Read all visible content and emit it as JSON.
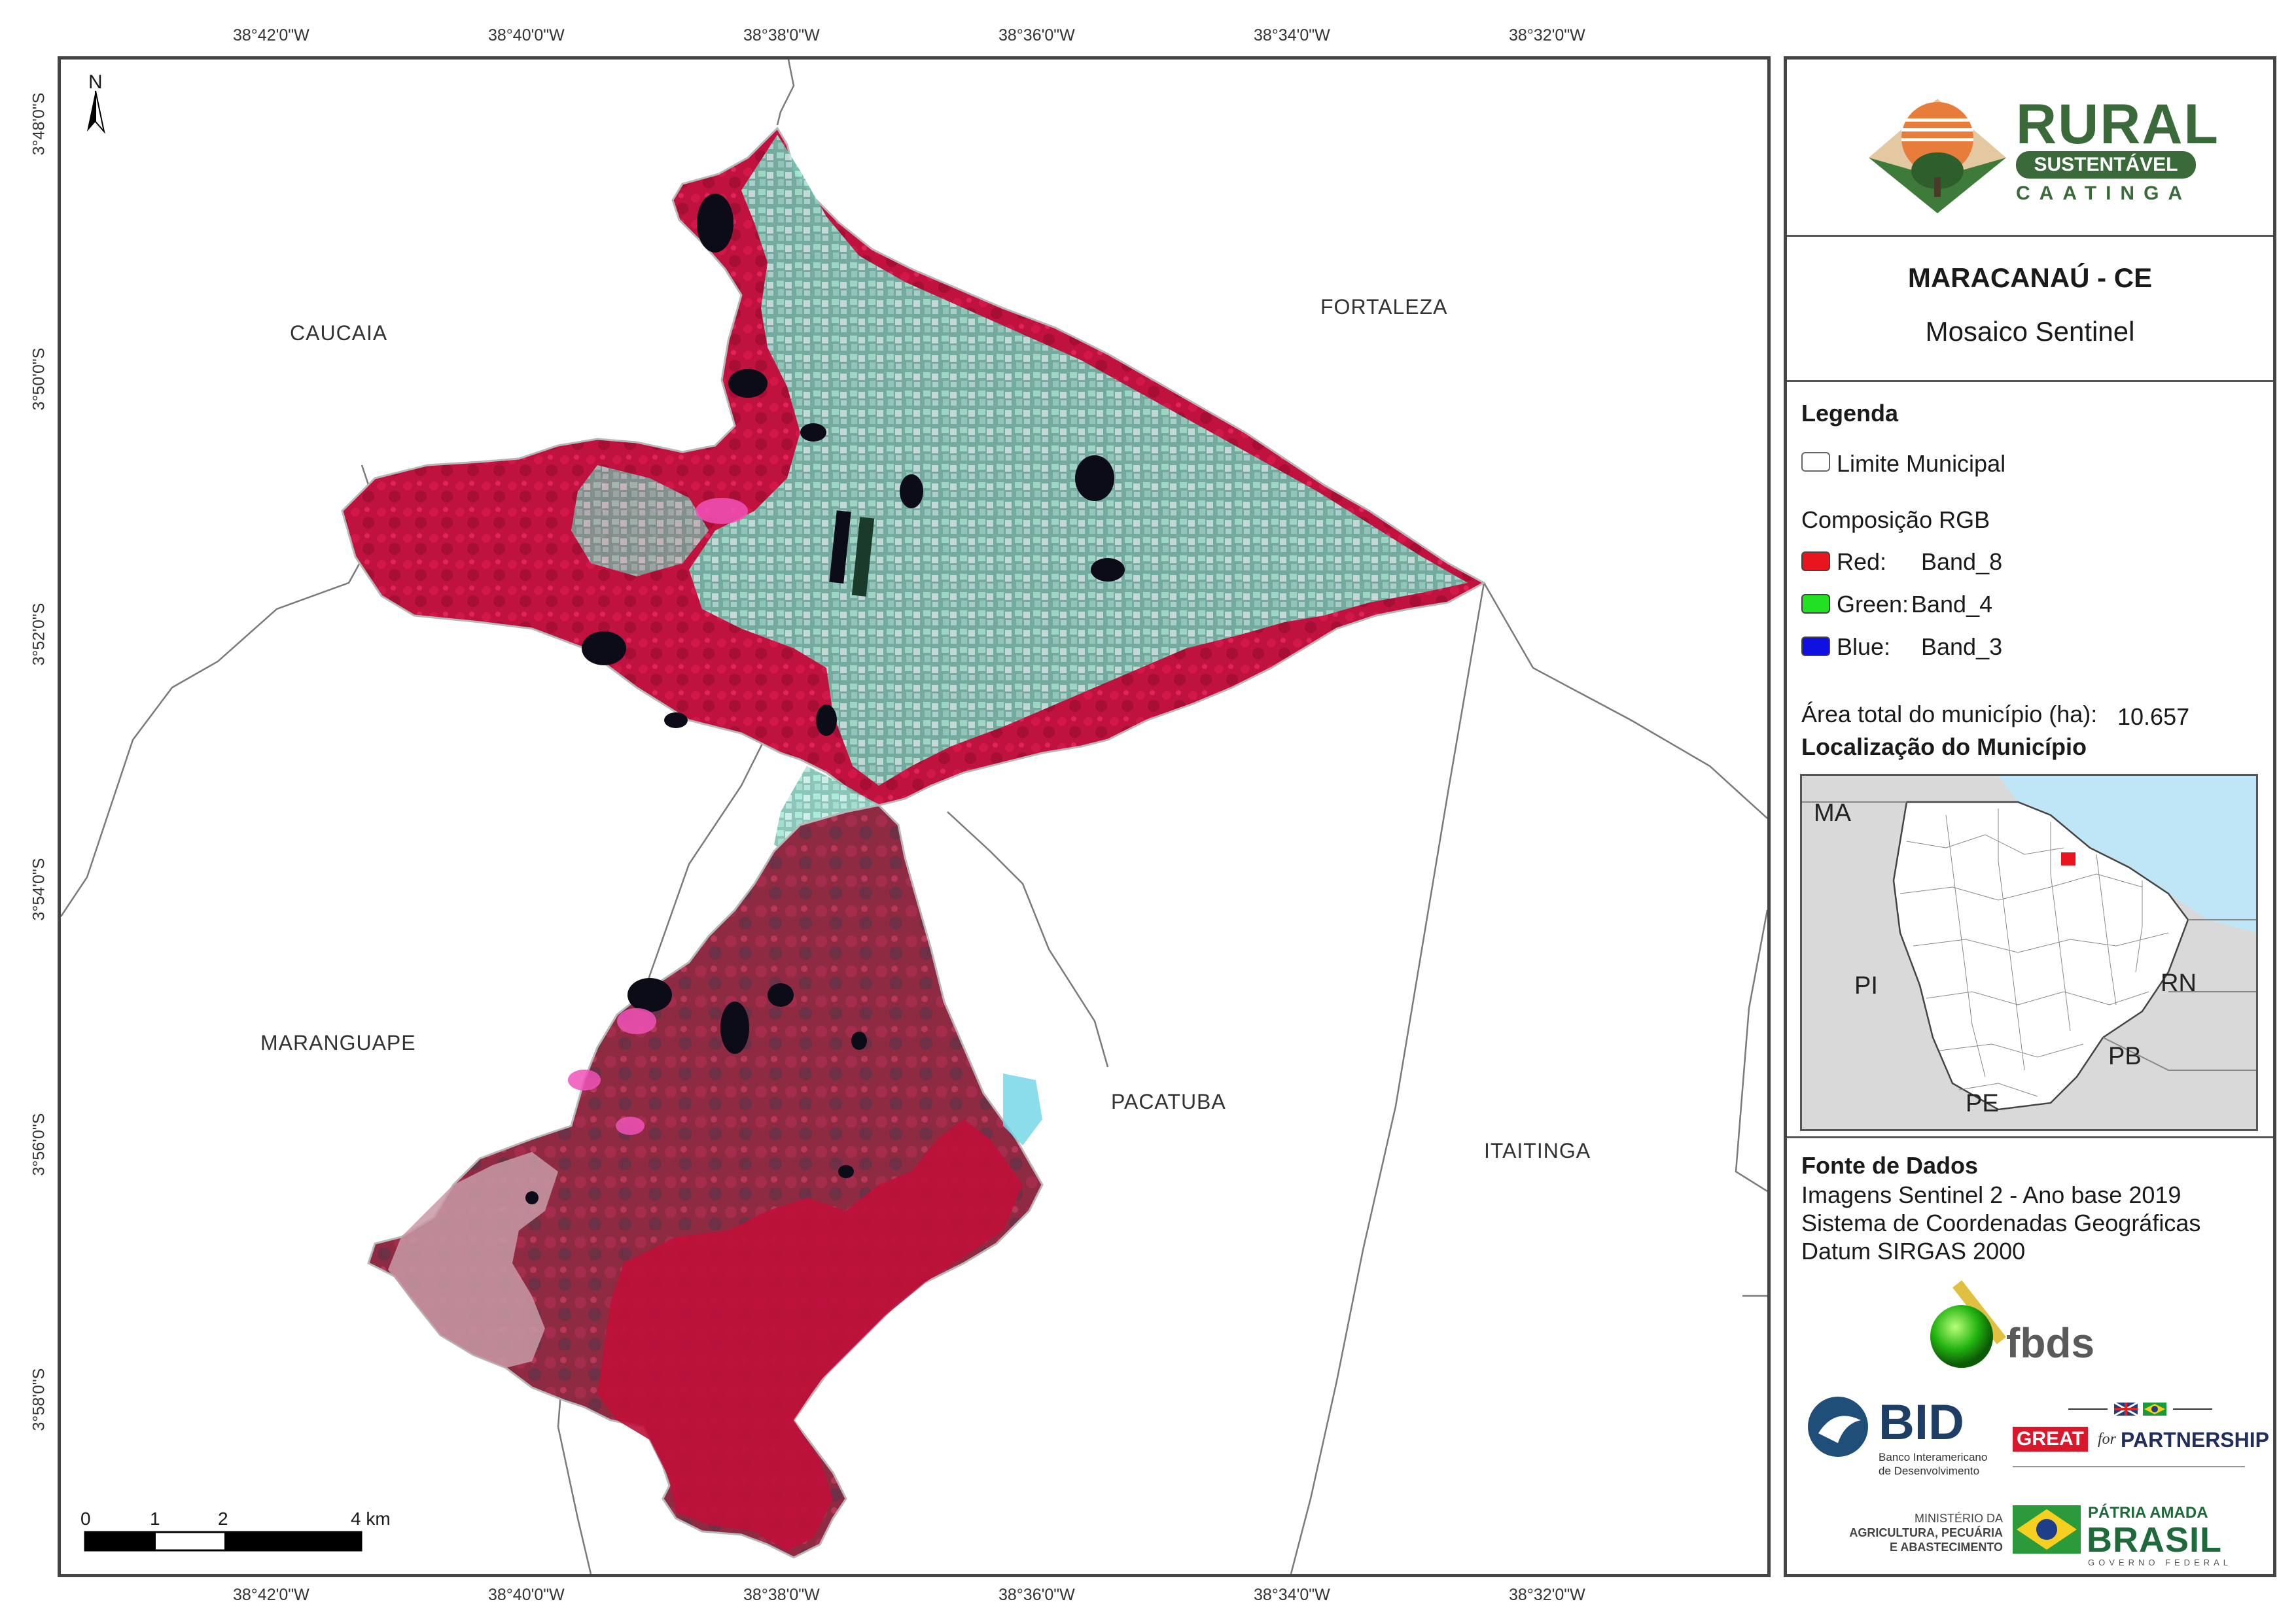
{
  "graticule": {
    "lon_top": [
      "38°42'0\"W",
      "38°40'0\"W",
      "38°38'0\"W",
      "38°36'0\"W",
      "38°34'0\"W",
      "38°32'0\"W"
    ],
    "lon_bottom": [
      "38°42'0\"W",
      "38°40'0\"W",
      "38°38'0\"W",
      "38°36'0\"W",
      "38°34'0\"W",
      "38°32'0\"W"
    ],
    "lat": [
      "3°48'0\"S",
      "3°50'0\"S",
      "3°52'0\"S",
      "3°54'0\"S",
      "3°56'0\"S",
      "3°58'0\"S"
    ]
  },
  "north_arrow": "N",
  "municipalities": {
    "caucaia": "CAUCAIA",
    "fortaleza": "FORTALEZA",
    "maranguape": "MARANGUAPE",
    "pacatuba": "PACATUBA",
    "itaitinga": "ITAITINGA"
  },
  "scale_bar": {
    "labels": [
      "0",
      "1",
      "2",
      "4 km"
    ]
  },
  "panel": {
    "logo": {
      "rural": "RURAL",
      "sustentavel": "SUSTENTÁVEL",
      "caatinga": "CAATINGA"
    },
    "title": "MARACANAÚ - CE",
    "subtitle": "Mosaico Sentinel",
    "legend": {
      "heading": "Legenda",
      "limit": "Limite Municipal",
      "rgb_heading": "Composição RGB",
      "bands": [
        {
          "label": "Red:",
          "band": "Band_8",
          "color": "#e8141e"
        },
        {
          "label": "Green:",
          "band": "Band_4",
          "color": "#22e022"
        },
        {
          "label": "Blue:",
          "band": "Band_3",
          "color": "#1010e0"
        }
      ]
    },
    "area_label": "Área total do município (ha):",
    "area_value": "10.657",
    "location_heading": "Localização do Município",
    "inset_states": {
      "ma": "MA",
      "pi": "PI",
      "rn": "RN",
      "pb": "PB",
      "pe": "PE"
    },
    "sources": {
      "heading": "Fonte de Dados",
      "lines": [
        "Imagens Sentinel 2 - Ano base 2019",
        "Sistema de Coordenadas Geográficas",
        "Datum SIRGAS 2000"
      ]
    },
    "partners": {
      "fbds": "fbds",
      "bid": "BID",
      "bid_sub1": "Banco Interamericano",
      "bid_sub2": "de Desenvolvimento",
      "great": "GREAT",
      "for": "for",
      "partnership": "PARTNERSHIP",
      "ministry1": "MINISTÉRIO DA",
      "ministry2": "AGRICULTURA, PECUÁRIA",
      "ministry3": "E ABASTECIMENTO",
      "patria": "PÁTRIA AMADA",
      "brasil": "BRASIL",
      "gov": "GOVERNO FEDERAL"
    }
  }
}
